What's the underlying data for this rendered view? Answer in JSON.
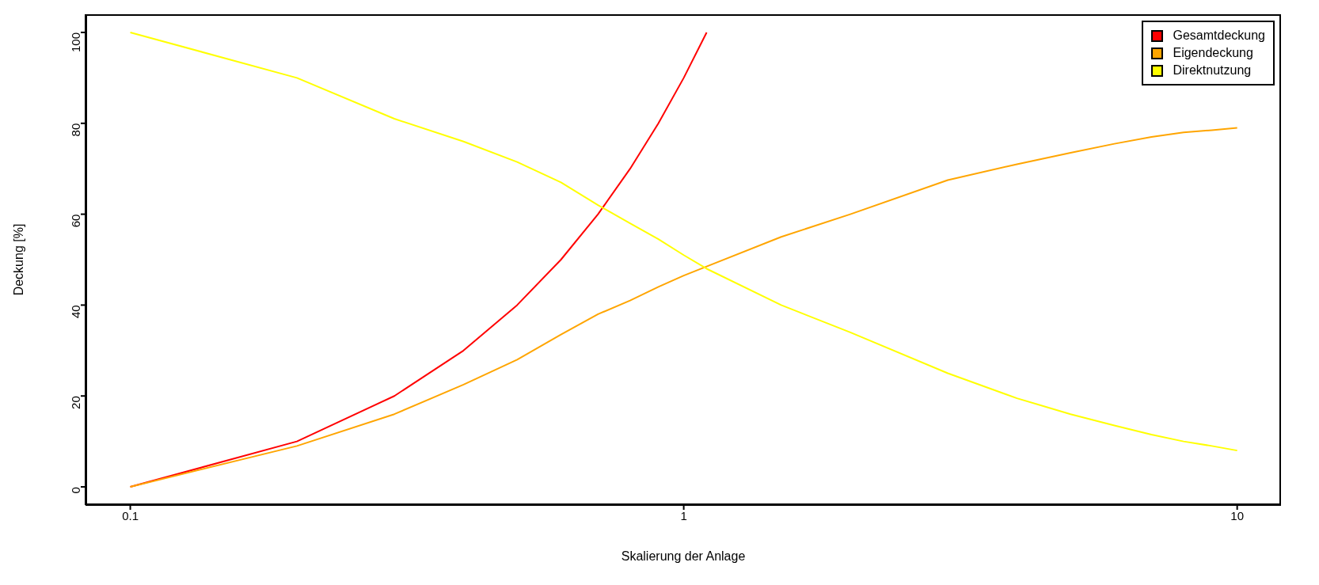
{
  "chart_data": {
    "type": "line",
    "xlabel": "Skalierung der Anlage",
    "ylabel": "Deckung [%]",
    "log": "x",
    "xlim": [
      0.083,
      12
    ],
    "xticks": [
      0.1,
      1,
      10
    ],
    "ylim": [
      -4,
      104
    ],
    "yticks": [
      0,
      20,
      40,
      60,
      80,
      100
    ],
    "grid": false,
    "legend": "top right",
    "marker": "none",
    "line_style": "solid",
    "series": [
      {
        "name": "Gesamtdeckung",
        "color": "#ff0000",
        "x": [
          0.1,
          0.2,
          0.3,
          0.4,
          0.5,
          0.6,
          0.7,
          0.8,
          0.9,
          1,
          1.1
        ],
        "values": [
          0,
          10,
          20,
          30,
          40,
          50,
          60,
          70,
          80,
          90,
          100
        ]
      },
      {
        "name": "Eigendeckung",
        "color": "#ffa500",
        "x": [
          0.1,
          0.2,
          0.3,
          0.4,
          0.5,
          0.6,
          0.7,
          0.8,
          0.9,
          1,
          1.1,
          1.5,
          2,
          3,
          4,
          5,
          6,
          7,
          8,
          9,
          10
        ],
        "values": [
          0,
          9,
          16,
          22.5,
          28,
          33.5,
          38,
          41,
          44,
          46.5,
          48.5,
          55,
          60,
          67.5,
          71,
          73.5,
          75.5,
          77,
          78,
          78.5,
          79
        ]
      },
      {
        "name": "Direktnutzung",
        "color": "#ffff00",
        "x": [
          0.1,
          0.2,
          0.3,
          0.4,
          0.5,
          0.6,
          0.7,
          0.8,
          0.9,
          1,
          1.1,
          1.5,
          2,
          3,
          4,
          5,
          6,
          7,
          8,
          9,
          10
        ],
        "values": [
          100,
          90,
          81,
          76,
          71.5,
          67,
          62,
          58,
          54.5,
          51,
          48,
          40,
          34,
          25,
          19.5,
          16,
          13.5,
          11.5,
          10,
          9,
          8
        ]
      }
    ]
  }
}
